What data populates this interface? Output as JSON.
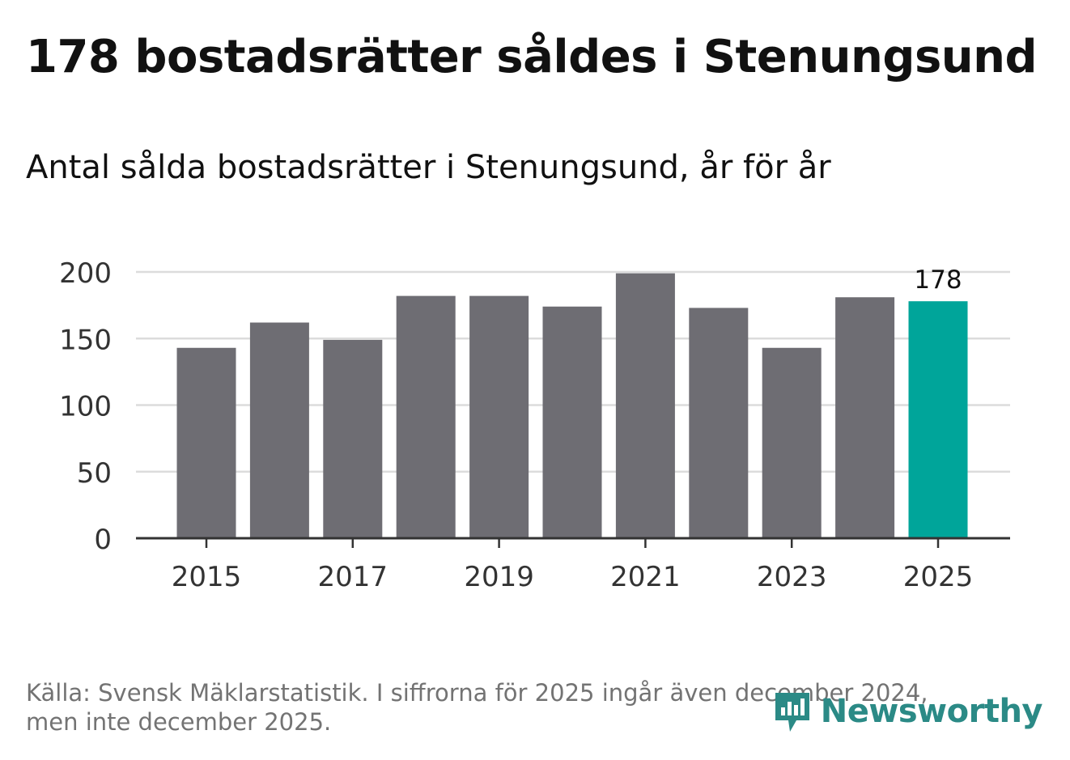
{
  "header": {
    "title": "178 bostadsrätter såldes i Stenungsund",
    "subtitle": "Antal sålda bostadsrätter i Stenungsund, år för år"
  },
  "footer": {
    "source_line1": "Källa: Svensk Mäklarstatistik. I siffrorna för 2025 ingår även december 2024,",
    "source_line2": "men inte december 2025."
  },
  "logo": {
    "text": "Newsworthy",
    "icon": "newsworthy-bar-chart-bubble-icon"
  },
  "colors": {
    "bar": "#6e6d73",
    "highlight": "#00a59a",
    "grid": "#dcdcdc",
    "axis": "#333333",
    "text": "#333333",
    "logo": "#2b8a86"
  },
  "chart_data": {
    "type": "bar",
    "title": "Antal sålda bostadsrätter i Stenungsund, år för år",
    "categories": [
      "2015",
      "2016",
      "2017",
      "2018",
      "2019",
      "2020",
      "2021",
      "2022",
      "2023",
      "2024",
      "2025"
    ],
    "values": [
      143,
      162,
      149,
      182,
      182,
      174,
      199,
      173,
      143,
      181,
      178
    ],
    "highlight_index": 10,
    "data_labels": [
      {
        "index": 10,
        "text": "178"
      }
    ],
    "xlabel": "",
    "ylabel": "",
    "ylim": [
      0,
      200
    ],
    "yticks": [
      0,
      50,
      100,
      150,
      200
    ],
    "xtick_labels": [
      "2015",
      "2017",
      "2019",
      "2021",
      "2023",
      "2025"
    ],
    "grid": true
  }
}
